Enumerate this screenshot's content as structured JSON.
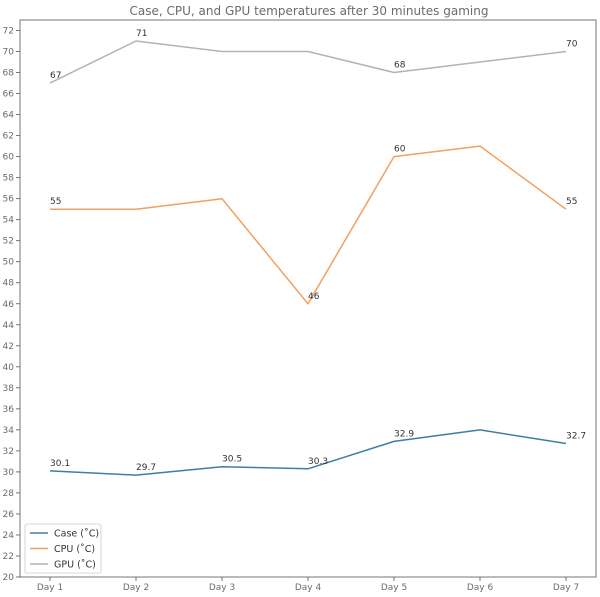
{
  "chart_data": {
    "type": "line",
    "title": "Case, CPU, and GPU temperatures after 30 minutes gaming",
    "xlabel": "",
    "ylabel": "",
    "categories": [
      "Day 1",
      "Day 2",
      "Day 3",
      "Day 4",
      "Day 5",
      "Day 6",
      "Day 7"
    ],
    "ylim": [
      20,
      73
    ],
    "yticks": [
      20,
      22,
      24,
      26,
      28,
      30,
      32,
      34,
      36,
      38,
      40,
      42,
      44,
      46,
      48,
      50,
      52,
      54,
      56,
      58,
      60,
      62,
      64,
      66,
      68,
      70,
      72
    ],
    "grid": false,
    "legend_position": "bottom-left",
    "series": [
      {
        "name": "Case (˚C)",
        "color": "#3f7ea0",
        "values": [
          30.1,
          29.7,
          30.5,
          30.3,
          32.9,
          34,
          32.7
        ],
        "labels": [
          "30.1",
          "29.7",
          "30.5",
          "30.3",
          "32.9",
          null,
          "32.7"
        ]
      },
      {
        "name": "CPU (˚C)",
        "color": "#f0a060",
        "values": [
          55,
          55,
          56,
          46,
          60,
          61,
          55
        ],
        "labels": [
          "55",
          null,
          null,
          "46",
          "60",
          null,
          "55"
        ]
      },
      {
        "name": "GPU (˚C)",
        "color": "#b3b3b3",
        "values": [
          67,
          71,
          70,
          70,
          68,
          69,
          70
        ],
        "labels": [
          "67",
          "71",
          null,
          null,
          "68",
          null,
          "70"
        ]
      }
    ]
  }
}
